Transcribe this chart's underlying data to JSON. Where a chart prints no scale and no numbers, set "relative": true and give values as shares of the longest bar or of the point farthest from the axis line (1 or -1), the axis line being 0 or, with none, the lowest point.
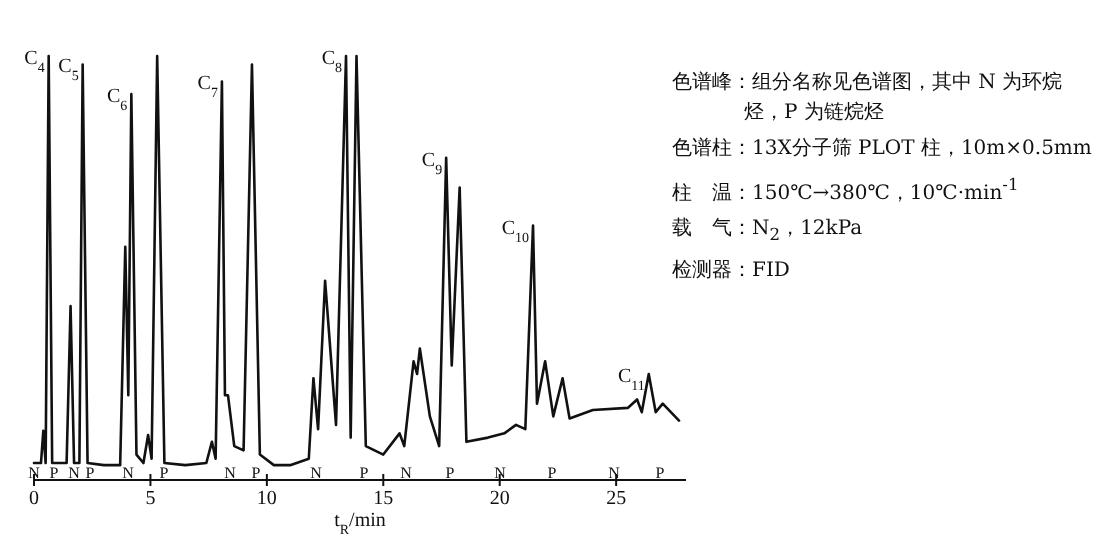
{
  "chart_data": {
    "type": "line",
    "relative": true,
    "xlabel": "t$_{R}$/min",
    "xlim": [
      0,
      28
    ],
    "xticks": [
      0,
      5,
      10,
      15,
      20,
      25
    ],
    "color": "#111111",
    "x": [
      0,
      0.3,
      0.4,
      0.5,
      0.63,
      0.78,
      1.4,
      1.57,
      1.72,
      1.95,
      2.09,
      2.3,
      3.0,
      3.7,
      3.92,
      4.05,
      4.18,
      4.4,
      4.7,
      4.9,
      5.05,
      5.29,
      5.6,
      6.5,
      7.4,
      7.64,
      7.8,
      8.07,
      8.2,
      8.33,
      8.6,
      9.0,
      9.36,
      9.7,
      10.3,
      11.0,
      11.8,
      12.0,
      12.2,
      12.5,
      12.97,
      13.4,
      13.6,
      13.85,
      14.25,
      15.0,
      15.7,
      15.9,
      16.3,
      16.45,
      16.57,
      17.0,
      17.4,
      17.7,
      17.94,
      18.28,
      18.57,
      19.5,
      20.2,
      20.7,
      21.1,
      21.43,
      21.6,
      21.95,
      22.3,
      22.7,
      23.0,
      24.0,
      25.5,
      25.9,
      26.1,
      26.4,
      26.7,
      27.0,
      27.7
    ],
    "values": [
      0.04,
      0.04,
      0.116,
      0.04,
      1,
      0.04,
      0.04,
      0.41,
      0.04,
      0.04,
      0.98,
      0.04,
      0.035,
      0.035,
      0.55,
      0.2,
      0.91,
      0.06,
      0.04,
      0.106,
      0.05,
      1,
      0.04,
      0.035,
      0.04,
      0.09,
      0.05,
      0.94,
      0.2,
      0.2,
      0.08,
      0.07,
      0.98,
      0.06,
      0.035,
      0.035,
      0.05,
      0.24,
      0.12,
      0.47,
      0.13,
      1,
      0.1,
      1,
      0.08,
      0.06,
      0.11,
      0.08,
      0.28,
      0.25,
      0.31,
      0.15,
      0.08,
      0.76,
      0.27,
      0.69,
      0.09,
      0.1,
      0.11,
      0.13,
      0.12,
      0.6,
      0.18,
      0.28,
      0.15,
      0.24,
      0.145,
      0.165,
      0.17,
      0.19,
      0.16,
      0.25,
      0.16,
      0.18,
      0.14
    ],
    "annotations": [
      "N",
      "P",
      "N",
      "P",
      "N",
      "P",
      "N",
      "P",
      "N",
      "P",
      "N",
      "P",
      "N",
      "P",
      "N",
      "P",
      {
        "text": "C$_{4}$",
        "x": 0.63,
        "y": 1
      },
      {
        "text": "C$_{5}$",
        "x": 2.09,
        "y": 0.98
      },
      {
        "text": "C$_{6}$",
        "x": 4.18,
        "y": 0.91
      },
      {
        "text": "C$_{7}$",
        "x": 8.07,
        "y": 0.94
      },
      {
        "text": "C$_{8}$",
        "x": 13.4,
        "y": 1
      },
      {
        "text": "C$_{9}$",
        "x": 17.7,
        "y": 0.76
      },
      {
        "text": "C$_{10}$",
        "x": 21.43,
        "y": 0.6
      },
      {
        "text": "C$_{11}$",
        "x": 26.4,
        "y": 0.25
      },
      "色谱峰：组分名称见色谱图，其中 N 为环烷烃，P 为链烷烃",
      "色谱柱：13X分子筛 PLOT 柱，10m×0.5mm",
      "柱　温：150℃→380℃，10℃·min$^{-1}$",
      "载　气：N$_{2}$，12kPa",
      "检测器：FID"
    ]
  }
}
